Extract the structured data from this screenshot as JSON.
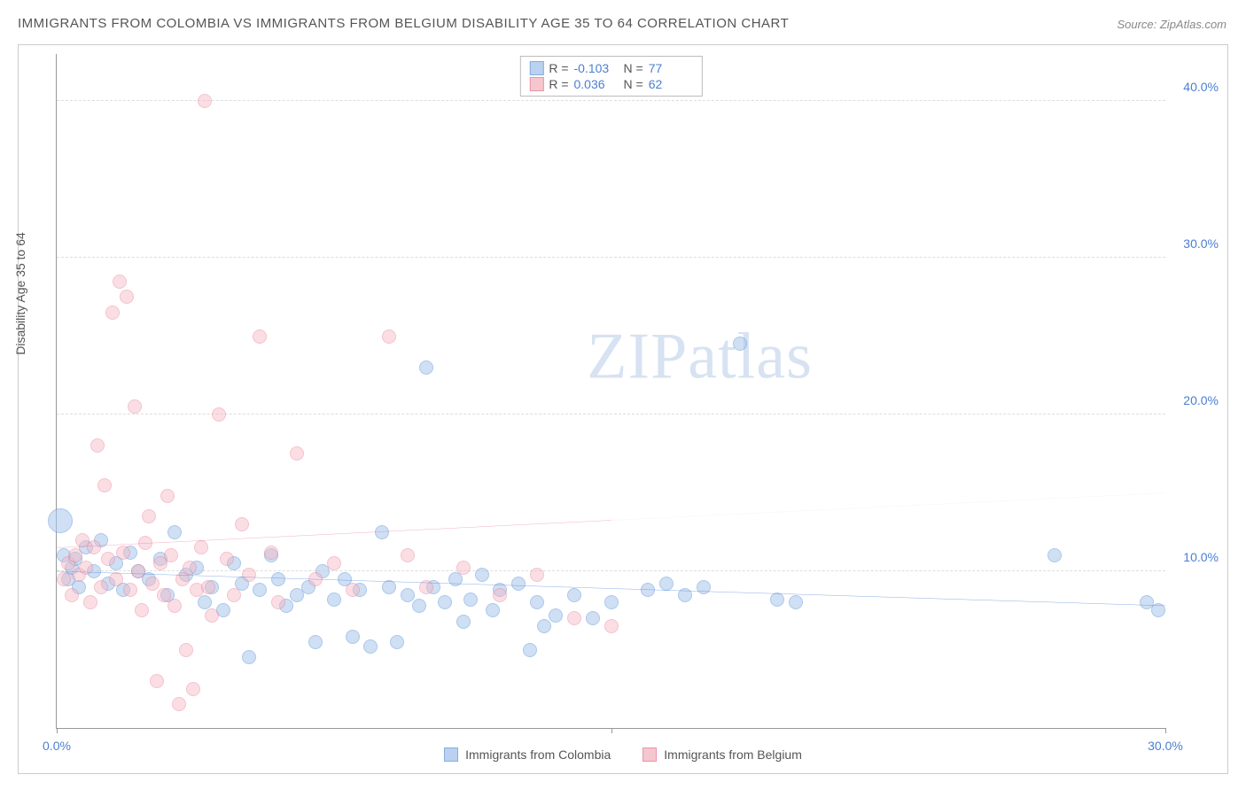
{
  "title": "IMMIGRANTS FROM COLOMBIA VS IMMIGRANTS FROM BELGIUM DISABILITY AGE 35 TO 64 CORRELATION CHART",
  "source_label": "Source: ZipAtlas.com",
  "ylabel": "Disability Age 35 to 64",
  "watermark": {
    "part1": "ZIP",
    "part2": "atlas"
  },
  "chart": {
    "type": "scatter",
    "xlim": [
      0,
      30
    ],
    "ylim": [
      0,
      43
    ],
    "xticks": [
      {
        "value": 0,
        "label": "0.0%"
      },
      {
        "value": 15,
        "label": ""
      },
      {
        "value": 30,
        "label": "30.0%"
      }
    ],
    "yticks": [
      {
        "value": 10,
        "label": "10.0%"
      },
      {
        "value": 20,
        "label": "20.0%"
      },
      {
        "value": 30,
        "label": "30.0%"
      },
      {
        "value": 40,
        "label": "40.0%"
      }
    ],
    "grid_color": "#dddddd",
    "background_color": "#ffffff",
    "axis_color": "#999999",
    "tick_label_color": "#4a7fd4",
    "point_radius": 8,
    "series": [
      {
        "id": "colombia",
        "label": "Immigrants from Colombia",
        "fill_color": "#a9c6ec",
        "stroke_color": "#6a9bd8",
        "fill_opacity": 0.55,
        "R": "-0.103",
        "N": "77",
        "trend": {
          "y_at_x0": 10.0,
          "y_at_xmax": 7.8,
          "solid_until_x": 30,
          "color": "#3b78d6",
          "width": 2.5
        },
        "points": [
          {
            "x": 0.1,
            "y": 13.2,
            "r": 14
          },
          {
            "x": 0.2,
            "y": 11.0
          },
          {
            "x": 0.3,
            "y": 9.5
          },
          {
            "x": 0.4,
            "y": 10.2
          },
          {
            "x": 0.5,
            "y": 10.8
          },
          {
            "x": 0.6,
            "y": 9.0
          },
          {
            "x": 0.8,
            "y": 11.5
          },
          {
            "x": 1.0,
            "y": 10.0
          },
          {
            "x": 1.2,
            "y": 12.0
          },
          {
            "x": 1.4,
            "y": 9.2
          },
          {
            "x": 1.6,
            "y": 10.5
          },
          {
            "x": 1.8,
            "y": 8.8
          },
          {
            "x": 2.0,
            "y": 11.2
          },
          {
            "x": 2.2,
            "y": 10.0
          },
          {
            "x": 2.5,
            "y": 9.5
          },
          {
            "x": 2.8,
            "y": 10.8
          },
          {
            "x": 3.0,
            "y": 8.5
          },
          {
            "x": 3.2,
            "y": 12.5
          },
          {
            "x": 3.5,
            "y": 9.8
          },
          {
            "x": 3.8,
            "y": 10.2
          },
          {
            "x": 4.0,
            "y": 8.0
          },
          {
            "x": 4.2,
            "y": 9.0
          },
          {
            "x": 4.5,
            "y": 7.5
          },
          {
            "x": 4.8,
            "y": 10.5
          },
          {
            "x": 5.0,
            "y": 9.2
          },
          {
            "x": 5.2,
            "y": 4.5
          },
          {
            "x": 5.5,
            "y": 8.8
          },
          {
            "x": 5.8,
            "y": 11.0
          },
          {
            "x": 6.0,
            "y": 9.5
          },
          {
            "x": 6.2,
            "y": 7.8
          },
          {
            "x": 6.5,
            "y": 8.5
          },
          {
            "x": 6.8,
            "y": 9.0
          },
          {
            "x": 7.0,
            "y": 5.5
          },
          {
            "x": 7.2,
            "y": 10.0
          },
          {
            "x": 7.5,
            "y": 8.2
          },
          {
            "x": 7.8,
            "y": 9.5
          },
          {
            "x": 8.0,
            "y": 5.8
          },
          {
            "x": 8.2,
            "y": 8.8
          },
          {
            "x": 8.5,
            "y": 5.2
          },
          {
            "x": 8.8,
            "y": 12.5
          },
          {
            "x": 9.0,
            "y": 9.0
          },
          {
            "x": 9.2,
            "y": 5.5
          },
          {
            "x": 9.5,
            "y": 8.5
          },
          {
            "x": 9.8,
            "y": 7.8
          },
          {
            "x": 10.0,
            "y": 23.0
          },
          {
            "x": 10.2,
            "y": 9.0
          },
          {
            "x": 10.5,
            "y": 8.0
          },
          {
            "x": 10.8,
            "y": 9.5
          },
          {
            "x": 11.0,
            "y": 6.8
          },
          {
            "x": 11.2,
            "y": 8.2
          },
          {
            "x": 11.5,
            "y": 9.8
          },
          {
            "x": 11.8,
            "y": 7.5
          },
          {
            "x": 12.0,
            "y": 8.8
          },
          {
            "x": 12.5,
            "y": 9.2
          },
          {
            "x": 12.8,
            "y": 5.0
          },
          {
            "x": 13.0,
            "y": 8.0
          },
          {
            "x": 13.2,
            "y": 6.5
          },
          {
            "x": 13.5,
            "y": 7.2
          },
          {
            "x": 14.0,
            "y": 8.5
          },
          {
            "x": 14.5,
            "y": 7.0
          },
          {
            "x": 15.0,
            "y": 8.0
          },
          {
            "x": 16.0,
            "y": 8.8
          },
          {
            "x": 16.5,
            "y": 9.2
          },
          {
            "x": 17.0,
            "y": 8.5
          },
          {
            "x": 17.5,
            "y": 9.0
          },
          {
            "x": 18.5,
            "y": 24.5
          },
          {
            "x": 19.5,
            "y": 8.2
          },
          {
            "x": 20.0,
            "y": 8.0
          },
          {
            "x": 27.0,
            "y": 11.0
          },
          {
            "x": 29.5,
            "y": 8.0
          },
          {
            "x": 29.8,
            "y": 7.5
          }
        ]
      },
      {
        "id": "belgium",
        "label": "Immigrants from Belgium",
        "fill_color": "#f4b8c4",
        "stroke_color": "#e77a93",
        "fill_opacity": 0.45,
        "R": "0.036",
        "N": "62",
        "trend": {
          "y_at_x0": 11.5,
          "y_at_xmax": 15.0,
          "solid_until_x": 15,
          "color": "#e05a7d",
          "width": 2,
          "dash_color": "#f2c0cc"
        },
        "points": [
          {
            "x": 0.2,
            "y": 9.5
          },
          {
            "x": 0.3,
            "y": 10.5
          },
          {
            "x": 0.4,
            "y": 8.5
          },
          {
            "x": 0.5,
            "y": 11.0
          },
          {
            "x": 0.6,
            "y": 9.8
          },
          {
            "x": 0.7,
            "y": 12.0
          },
          {
            "x": 0.8,
            "y": 10.2
          },
          {
            "x": 0.9,
            "y": 8.0
          },
          {
            "x": 1.0,
            "y": 11.5
          },
          {
            "x": 1.1,
            "y": 18.0
          },
          {
            "x": 1.2,
            "y": 9.0
          },
          {
            "x": 1.3,
            "y": 15.5
          },
          {
            "x": 1.4,
            "y": 10.8
          },
          {
            "x": 1.5,
            "y": 26.5
          },
          {
            "x": 1.6,
            "y": 9.5
          },
          {
            "x": 1.7,
            "y": 28.5
          },
          {
            "x": 1.8,
            "y": 11.2
          },
          {
            "x": 1.9,
            "y": 27.5
          },
          {
            "x": 2.0,
            "y": 8.8
          },
          {
            "x": 2.1,
            "y": 20.5
          },
          {
            "x": 2.2,
            "y": 10.0
          },
          {
            "x": 2.3,
            "y": 7.5
          },
          {
            "x": 2.4,
            "y": 11.8
          },
          {
            "x": 2.5,
            "y": 13.5
          },
          {
            "x": 2.6,
            "y": 9.2
          },
          {
            "x": 2.7,
            "y": 3.0
          },
          {
            "x": 2.8,
            "y": 10.5
          },
          {
            "x": 2.9,
            "y": 8.5
          },
          {
            "x": 3.0,
            "y": 14.8
          },
          {
            "x": 3.1,
            "y": 11.0
          },
          {
            "x": 3.2,
            "y": 7.8
          },
          {
            "x": 3.3,
            "y": 1.5
          },
          {
            "x": 3.4,
            "y": 9.5
          },
          {
            "x": 3.5,
            "y": 5.0
          },
          {
            "x": 3.6,
            "y": 10.2
          },
          {
            "x": 3.7,
            "y": 2.5
          },
          {
            "x": 3.8,
            "y": 8.8
          },
          {
            "x": 3.9,
            "y": 11.5
          },
          {
            "x": 4.0,
            "y": 40.0
          },
          {
            "x": 4.1,
            "y": 9.0
          },
          {
            "x": 4.2,
            "y": 7.2
          },
          {
            "x": 4.4,
            "y": 20.0
          },
          {
            "x": 4.6,
            "y": 10.8
          },
          {
            "x": 4.8,
            "y": 8.5
          },
          {
            "x": 5.0,
            "y": 13.0
          },
          {
            "x": 5.2,
            "y": 9.8
          },
          {
            "x": 5.5,
            "y": 25.0
          },
          {
            "x": 5.8,
            "y": 11.2
          },
          {
            "x": 6.0,
            "y": 8.0
          },
          {
            "x": 6.5,
            "y": 17.5
          },
          {
            "x": 7.0,
            "y": 9.5
          },
          {
            "x": 7.5,
            "y": 10.5
          },
          {
            "x": 8.0,
            "y": 8.8
          },
          {
            "x": 9.0,
            "y": 25.0
          },
          {
            "x": 9.5,
            "y": 11.0
          },
          {
            "x": 10.0,
            "y": 9.0
          },
          {
            "x": 11.0,
            "y": 10.2
          },
          {
            "x": 12.0,
            "y": 8.5
          },
          {
            "x": 13.0,
            "y": 9.8
          },
          {
            "x": 14.0,
            "y": 7.0
          },
          {
            "x": 15.0,
            "y": 6.5
          }
        ]
      }
    ]
  },
  "bottom_legend": [
    {
      "series": "colombia"
    },
    {
      "series": "belgium"
    }
  ]
}
